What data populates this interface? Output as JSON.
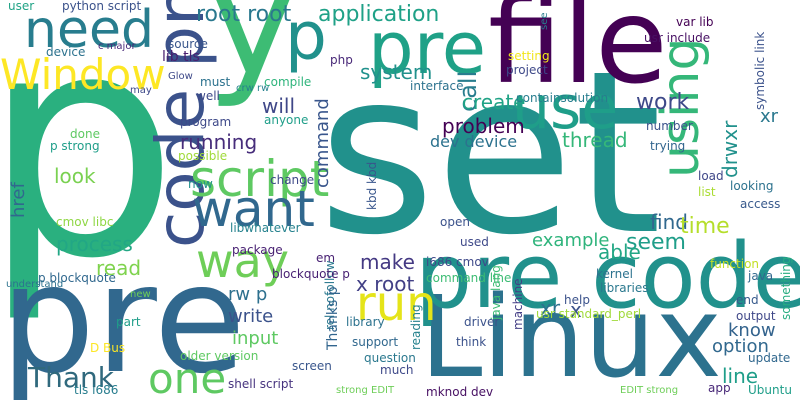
{
  "word_cloud": {
    "words": [
      {
        "text": "p",
        "color": "#2ab07f"
      },
      {
        "text": "set",
        "color": "#21918c"
      },
      {
        "text": "pre",
        "color": "#31688e"
      },
      {
        "text": "Linux",
        "color": "#2c728e"
      },
      {
        "text": "file",
        "color": "#440154"
      },
      {
        "text": "y",
        "color": "#3dbc74"
      },
      {
        "text": "pre code",
        "color": "#21918c"
      },
      {
        "text": "code pre",
        "color": "#3b528b"
      },
      {
        "text": "use",
        "color": "#1f9e89"
      },
      {
        "text": "using",
        "color": "#35b779"
      },
      {
        "text": "pre",
        "color": "#1fa187"
      },
      {
        "text": "need",
        "color": "#287d8e"
      },
      {
        "text": "p",
        "color": "#21918c"
      },
      {
        "text": "Window",
        "color": "#fde725"
      },
      {
        "text": "script",
        "color": "#5ec962"
      },
      {
        "text": "want",
        "color": "#31688e"
      },
      {
        "text": "way",
        "color": "#6ece58"
      },
      {
        "text": "run",
        "color": "#e5e419"
      },
      {
        "text": "one",
        "color": "#5ec962"
      },
      {
        "text": "Thank",
        "color": "#30697d"
      },
      {
        "text": "application",
        "color": "#1fa187"
      },
      {
        "text": "root root",
        "color": "#2a788e"
      },
      {
        "text": "system",
        "color": "#21918c"
      },
      {
        "text": "call",
        "color": "#287d8e"
      },
      {
        "text": "work",
        "color": "#3e4989"
      },
      {
        "text": "problem",
        "color": "#440154"
      },
      {
        "text": "create",
        "color": "#20a386"
      },
      {
        "text": "thread",
        "color": "#35b779"
      },
      {
        "text": "dev device",
        "color": "#2c728e"
      },
      {
        "text": "running",
        "color": "#472d7b"
      },
      {
        "text": "look",
        "color": "#7ad151"
      },
      {
        "text": "process",
        "color": "#22a785"
      },
      {
        "text": "read",
        "color": "#7fd34e"
      },
      {
        "text": "make",
        "color": "#443983"
      },
      {
        "text": "x root",
        "color": "#424086"
      },
      {
        "text": "find",
        "color": "#31688e"
      },
      {
        "text": "time",
        "color": "#b5de2b"
      },
      {
        "text": "seem",
        "color": "#1f9e89"
      },
      {
        "text": "able",
        "color": "#22a785"
      },
      {
        "text": "example",
        "color": "#2fb47c"
      },
      {
        "text": "option",
        "color": "#31688e"
      },
      {
        "text": "line",
        "color": "#1f9e89"
      },
      {
        "text": "know",
        "color": "#33638d"
      },
      {
        "text": "input",
        "color": "#5ec962"
      },
      {
        "text": "write",
        "color": "#3b528b"
      },
      {
        "text": "rw p",
        "color": "#2d708e"
      },
      {
        "text": "href",
        "color": "#31688e"
      },
      {
        "text": "command",
        "color": "#39568c"
      },
      {
        "text": "xr",
        "color": "#2a788e"
      },
      {
        "text": "x",
        "color": "#3b528b"
      },
      {
        "text": "drwxr",
        "color": "#21918c"
      },
      {
        "text": "xr",
        "color": "#2c728e"
      },
      {
        "text": "lib tls",
        "color": "#481f70"
      },
      {
        "text": "will",
        "color": "#3f4788"
      },
      {
        "text": "must",
        "color": "#2c728e"
      },
      {
        "text": "well",
        "color": "#3e4989"
      },
      {
        "text": "source",
        "color": "#39568c"
      },
      {
        "text": "compile",
        "color": "#2fb47c"
      },
      {
        "text": "php",
        "color": "#482878"
      },
      {
        "text": "crw rw",
        "color": "#26828e"
      },
      {
        "text": "anyone",
        "color": "#1f9e89"
      },
      {
        "text": "program",
        "color": "#3e4989"
      },
      {
        "text": "possible",
        "color": "#a0da39"
      },
      {
        "text": "now",
        "color": "#21918c"
      },
      {
        "text": "change",
        "color": "#3e4989"
      },
      {
        "text": "package",
        "color": "#482173"
      },
      {
        "text": "libwhatever",
        "color": "#26828e"
      },
      {
        "text": "em",
        "color": "#482173"
      },
      {
        "text": "interface",
        "color": "#2c728e"
      },
      {
        "text": "containsolution",
        "color": "#287d8e"
      },
      {
        "text": "project",
        "color": "#3e4989"
      },
      {
        "text": "setting",
        "color": "#f1e51d"
      },
      {
        "text": "usr include",
        "color": "#471063"
      },
      {
        "text": "var lib",
        "color": "#440154"
      },
      {
        "text": "see",
        "color": "#287d8e"
      },
      {
        "text": "symbolic link",
        "color": "#3b528b"
      },
      {
        "text": "number",
        "color": "#3b528b"
      },
      {
        "text": "trying",
        "color": "#32658e"
      },
      {
        "text": "load",
        "color": "#3f4788"
      },
      {
        "text": "list",
        "color": "#aadc32"
      },
      {
        "text": "looking",
        "color": "#2c728e"
      },
      {
        "text": "access",
        "color": "#38598c"
      },
      {
        "text": "function",
        "color": "#c2df23"
      },
      {
        "text": "kernel",
        "color": "#2c728e"
      },
      {
        "text": "java",
        "color": "#31688e"
      },
      {
        "text": "end",
        "color": "#375a8c"
      },
      {
        "text": "output",
        "color": "#3f4788"
      },
      {
        "text": "something",
        "color": "#27ad81"
      },
      {
        "text": "update",
        "color": "#31688e"
      },
      {
        "text": "Ubuntu",
        "color": "#1f9e89"
      },
      {
        "text": "app",
        "color": "#482878"
      },
      {
        "text": "python script",
        "color": "#3b528b"
      },
      {
        "text": "user",
        "color": "#20a386"
      },
      {
        "text": "device",
        "color": "#2c728e"
      },
      {
        "text": "c major",
        "color": "#482878"
      },
      {
        "text": "Glow",
        "color": "#3e4989"
      },
      {
        "text": "may",
        "color": "#3e4989"
      },
      {
        "text": "done",
        "color": "#5ec962"
      },
      {
        "text": "p strong",
        "color": "#1f9e89"
      },
      {
        "text": "cmov libc",
        "color": "#8fd744"
      },
      {
        "text": "p blockquote",
        "color": "#31688e"
      },
      {
        "text": "new",
        "color": "#6ece58"
      },
      {
        "text": "understand",
        "color": "#2c728e"
      },
      {
        "text": "part",
        "color": "#1f9e89"
      },
      {
        "text": "D Bus",
        "color": "#fde725"
      },
      {
        "text": "older version",
        "color": "#5ec962"
      },
      {
        "text": "tls i686",
        "color": "#287d8e"
      },
      {
        "text": "shell script",
        "color": "#46337e"
      },
      {
        "text": "screen",
        "color": "#39568c"
      },
      {
        "text": "rel nofollow",
        "color": "#2a788e"
      },
      {
        "text": "support",
        "color": "#31688e"
      },
      {
        "text": "question",
        "color": "#2a788e"
      },
      {
        "text": "much",
        "color": "#3e4989"
      },
      {
        "text": "mknod dev",
        "color": "#471063"
      },
      {
        "text": "strong EDIT",
        "color": "#6ece58"
      },
      {
        "text": "reading",
        "color": "#26828e"
      },
      {
        "text": "think",
        "color": "#3b528b"
      },
      {
        "text": "java lang",
        "color": "#3dbc74"
      },
      {
        "text": "machine",
        "color": "#433e85"
      },
      {
        "text": "driver",
        "color": "#3b528b"
      },
      {
        "text": "library",
        "color": "#2c728e"
      },
      {
        "text": "libraries",
        "color": "#2a788e"
      },
      {
        "text": "help",
        "color": "#3b528b"
      },
      {
        "text": "EDIT strong",
        "color": "#6ece58"
      },
      {
        "text": "usr standard_perl",
        "color": "#a0da39"
      },
      {
        "text": "i686 cmov",
        "color": "#3e4989"
      },
      {
        "text": "blockquote p",
        "color": "#482173"
      },
      {
        "text": "command line",
        "color": "#3dbc74"
      },
      {
        "text": "kbd kbd",
        "color": "#39568c"
      },
      {
        "text": "used",
        "color": "#3e4989"
      },
      {
        "text": "open",
        "color": "#3b528b"
      },
      {
        "text": "Thanks p",
        "color": "#32658e"
      }
    ]
  }
}
